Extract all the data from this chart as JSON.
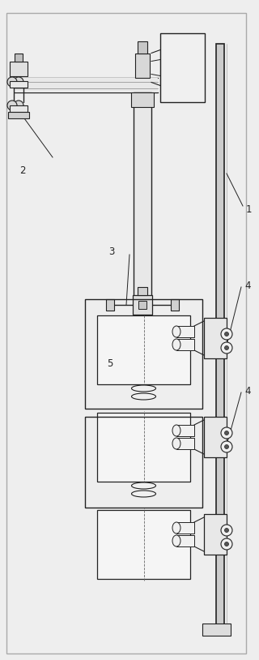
{
  "bg_color": "#eeeeee",
  "line_color": "#222222",
  "fig_width": 3.2,
  "fig_height": 8.14,
  "dpi": 100
}
